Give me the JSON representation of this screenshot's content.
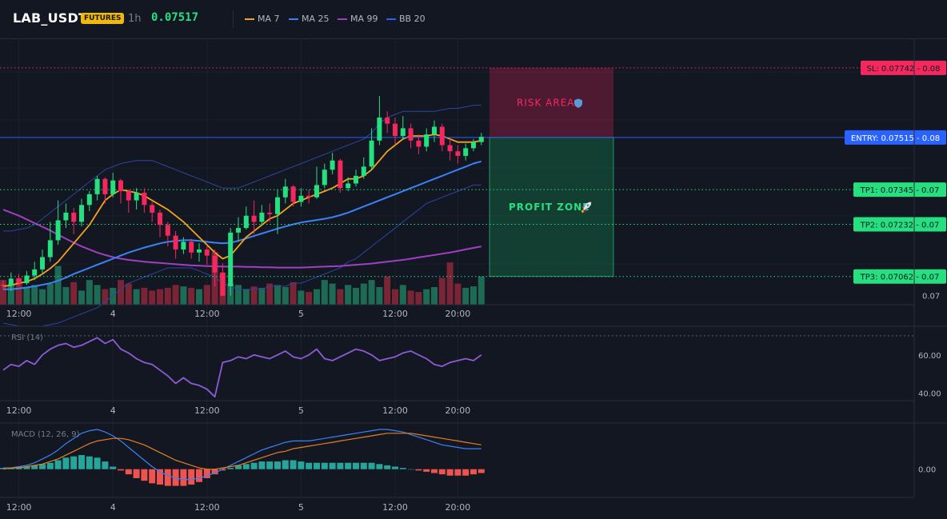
{
  "header": {
    "symbol": "LAB_USDT",
    "badge": "FUTURES",
    "interval": "1h",
    "last_price": "0.07517",
    "legend": [
      {
        "label": "MA 7",
        "color": "#f7a21b"
      },
      {
        "label": "MA 25",
        "color": "#3b82f6"
      },
      {
        "label": "MA 99",
        "color": "#a13fc2"
      },
      {
        "label": "BB 20",
        "color": "#2962ff"
      }
    ]
  },
  "colors": {
    "up": "#26e07f",
    "down": "#f5285e",
    "vol_up": "#1e6b55",
    "vol_down": "#7a2535",
    "ma7": "#f7a21b",
    "ma25": "#3b82f6",
    "ma99": "#a13fc2",
    "bb": "#2d44a0",
    "rsi": "#8e5bd6",
    "macd": "#3b82f6",
    "signal": "#e67e22",
    "hist_up": "#26a69a",
    "hist_down": "#ef5350"
  },
  "time_axis": {
    "labels": [
      {
        "bar": 2,
        "text": "12:00"
      },
      {
        "bar": 14,
        "text": "4"
      },
      {
        "bar": 26,
        "text": "12:00"
      },
      {
        "bar": 38,
        "text": "5"
      },
      {
        "bar": 50,
        "text": "12:00"
      },
      {
        "bar": 58,
        "text": "20:00"
      }
    ]
  },
  "chart_data": [
    {
      "type": "candlestick",
      "ylim": [
        0.0697,
        0.07838
      ],
      "price_tick_labels": [
        {
          "value": 0.07,
          "text": "0.07"
        }
      ],
      "candles": [
        [
          0.07035,
          0.07032,
          0.0705,
          0.0702
        ],
        [
          0.07032,
          0.07055,
          0.07075,
          0.07015
        ],
        [
          0.07055,
          0.0704,
          0.0707,
          0.0703
        ],
        [
          0.0704,
          0.07065,
          0.0708,
          0.07035
        ],
        [
          0.07065,
          0.07085,
          0.0711,
          0.0705
        ],
        [
          0.07085,
          0.07125,
          0.0715,
          0.0707
        ],
        [
          0.07125,
          0.0718,
          0.0724,
          0.0711
        ],
        [
          0.0718,
          0.07245,
          0.0731,
          0.07165
        ],
        [
          0.07245,
          0.0727,
          0.073,
          0.0722
        ],
        [
          0.0727,
          0.0724,
          0.07285,
          0.072
        ],
        [
          0.0724,
          0.07295,
          0.07315,
          0.07225
        ],
        [
          0.07295,
          0.0733,
          0.0734,
          0.07275
        ],
        [
          0.0733,
          0.0738,
          0.0739,
          0.0731
        ],
        [
          0.0738,
          0.0733,
          0.07385,
          0.073
        ],
        [
          0.0733,
          0.07375,
          0.074,
          0.0732
        ],
        [
          0.07375,
          0.0734,
          0.0738,
          0.073
        ],
        [
          0.0734,
          0.0731,
          0.07345,
          0.0727
        ],
        [
          0.0731,
          0.07335,
          0.0735,
          0.0728
        ],
        [
          0.07335,
          0.07295,
          0.0735,
          0.0727
        ],
        [
          0.07295,
          0.0727,
          0.07305,
          0.0724
        ],
        [
          0.0727,
          0.0723,
          0.0728,
          0.0719
        ],
        [
          0.0723,
          0.07195,
          0.0724,
          0.0716
        ],
        [
          0.07195,
          0.0715,
          0.0721,
          0.0712
        ],
        [
          0.0715,
          0.07175,
          0.0719,
          0.07135
        ],
        [
          0.07175,
          0.0714,
          0.07185,
          0.0712
        ],
        [
          0.0714,
          0.0715,
          0.0717,
          0.0711
        ],
        [
          0.0715,
          0.0713,
          0.07165,
          0.071
        ],
        [
          0.0713,
          0.07075,
          0.0715,
          0.0703
        ],
        [
          0.07075,
          0.06999,
          0.07105,
          0.0701
        ],
        [
          0.0703,
          0.07205,
          0.0722,
          0.07
        ],
        [
          0.07205,
          0.0722,
          0.07255,
          0.07175
        ],
        [
          0.0722,
          0.0726,
          0.0729,
          0.07215
        ],
        [
          0.0726,
          0.0724,
          0.0731,
          0.072
        ],
        [
          0.0724,
          0.0727,
          0.07295,
          0.0723
        ],
        [
          0.0727,
          0.07265,
          0.073,
          0.0724
        ],
        [
          0.07265,
          0.0732,
          0.07345,
          0.072
        ],
        [
          0.0732,
          0.07355,
          0.0738,
          0.073
        ],
        [
          0.07355,
          0.07305,
          0.0736,
          0.0729
        ],
        [
          0.07305,
          0.07325,
          0.0735,
          0.0729
        ],
        [
          0.07325,
          0.0732,
          0.07345,
          0.073
        ],
        [
          0.0732,
          0.0736,
          0.0742,
          0.07315
        ],
        [
          0.0736,
          0.0741,
          0.0743,
          0.0735
        ],
        [
          0.0741,
          0.0744,
          0.07465,
          0.07395
        ],
        [
          0.0744,
          0.0735,
          0.07445,
          0.07335
        ],
        [
          0.0735,
          0.07365,
          0.07385,
          0.0734
        ],
        [
          0.07365,
          0.0739,
          0.0741,
          0.07355
        ],
        [
          0.0739,
          0.0742,
          0.0745,
          0.0738
        ],
        [
          0.0742,
          0.07505,
          0.07545,
          0.0741
        ],
        [
          0.07505,
          0.0758,
          0.0765,
          0.0749
        ],
        [
          0.0758,
          0.0756,
          0.076,
          0.0753
        ],
        [
          0.0756,
          0.0752,
          0.0758,
          0.0749
        ],
        [
          0.0752,
          0.07545,
          0.07585,
          0.0751
        ],
        [
          0.07545,
          0.07505,
          0.0756,
          0.0748
        ],
        [
          0.07505,
          0.07485,
          0.07525,
          0.0746
        ],
        [
          0.07485,
          0.07525,
          0.07545,
          0.0747
        ],
        [
          0.07525,
          0.0755,
          0.0757,
          0.075
        ],
        [
          0.0755,
          0.0749,
          0.0756,
          0.0747
        ],
        [
          0.0749,
          0.0747,
          0.0751,
          0.0744
        ],
        [
          0.0747,
          0.07455,
          0.0749,
          0.0743
        ],
        [
          0.07455,
          0.0748,
          0.07495,
          0.0744
        ],
        [
          0.0748,
          0.075,
          0.0751,
          0.0747
        ],
        [
          0.075,
          0.07517,
          0.0753,
          0.0749
        ]
      ],
      "ma7": [
        0.0703,
        0.07033,
        0.0704,
        0.07045,
        0.07055,
        0.0707,
        0.07088,
        0.0711,
        0.0714,
        0.0717,
        0.072,
        0.0723,
        0.0727,
        0.0731,
        0.0733,
        0.07345,
        0.0734,
        0.07335,
        0.07325,
        0.0731,
        0.07295,
        0.0728,
        0.0726,
        0.0724,
        0.07215,
        0.0719,
        0.07165,
        0.0714,
        0.0712,
        0.0713,
        0.0716,
        0.0719,
        0.0721,
        0.0723,
        0.0725,
        0.0726,
        0.0728,
        0.073,
        0.0731,
        0.0732,
        0.0733,
        0.0734,
        0.0735,
        0.07365,
        0.0738,
        0.0738,
        0.0739,
        0.0741,
        0.0744,
        0.0747,
        0.0749,
        0.0751,
        0.0752,
        0.0752,
        0.0752,
        0.07525,
        0.0752,
        0.0751,
        0.075,
        0.075,
        0.075,
        0.07505
      ],
      "ma25": [
        0.0702,
        0.0702,
        0.07023,
        0.07026,
        0.0703,
        0.07035,
        0.0704,
        0.07048,
        0.07058,
        0.0707,
        0.0708,
        0.0709,
        0.071,
        0.0711,
        0.0712,
        0.0713,
        0.0714,
        0.07148,
        0.07156,
        0.07163,
        0.0717,
        0.07175,
        0.07178,
        0.0718,
        0.0718,
        0.07178,
        0.07175,
        0.07172,
        0.0717,
        0.07172,
        0.07178,
        0.07186,
        0.07194,
        0.07202,
        0.0721,
        0.07218,
        0.07225,
        0.07232,
        0.07238,
        0.07242,
        0.07246,
        0.0725,
        0.07255,
        0.07262,
        0.0727,
        0.0728,
        0.0729,
        0.073,
        0.0731,
        0.0732,
        0.0733,
        0.0734,
        0.0735,
        0.0736,
        0.0737,
        0.0738,
        0.0739,
        0.074,
        0.0741,
        0.0742,
        0.0743,
        0.07437
      ],
      "ma99": [
        0.0728,
        0.0727,
        0.0726,
        0.07248,
        0.07236,
        0.07224,
        0.07212,
        0.07198,
        0.07185,
        0.07172,
        0.0716,
        0.0715,
        0.0714,
        0.07132,
        0.07125,
        0.0712,
        0.07116,
        0.07113,
        0.0711,
        0.07108,
        0.07106,
        0.07104,
        0.07102,
        0.071,
        0.07098,
        0.07097,
        0.07096,
        0.07095,
        0.07094,
        0.07094,
        0.07094,
        0.07093,
        0.07093,
        0.07092,
        0.07092,
        0.07091,
        0.07091,
        0.07091,
        0.07091,
        0.07092,
        0.07093,
        0.07094,
        0.07095,
        0.07096,
        0.07098,
        0.071,
        0.07102,
        0.07104,
        0.07107,
        0.0711,
        0.07113,
        0.07116,
        0.0712,
        0.07124,
        0.07128,
        0.07132,
        0.07136,
        0.0714,
        0.07145,
        0.0715,
        0.07155,
        0.0716
      ],
      "bb_upper": [
        0.0721,
        0.0721,
        0.07215,
        0.0722,
        0.0723,
        0.0725,
        0.0727,
        0.0729,
        0.0731,
        0.0733,
        0.0735,
        0.0737,
        0.0739,
        0.0741,
        0.0742,
        0.0743,
        0.07435,
        0.0744,
        0.0744,
        0.0744,
        0.0743,
        0.0742,
        0.0741,
        0.074,
        0.0739,
        0.0738,
        0.0737,
        0.0736,
        0.0735,
        0.0735,
        0.0735,
        0.0736,
        0.0737,
        0.0738,
        0.0739,
        0.074,
        0.0741,
        0.0742,
        0.0743,
        0.0744,
        0.0745,
        0.0746,
        0.0747,
        0.0748,
        0.0749,
        0.075,
        0.0751,
        0.0753,
        0.0756,
        0.0758,
        0.0759,
        0.076,
        0.076,
        0.076,
        0.076,
        0.076,
        0.07605,
        0.0761,
        0.0761,
        0.07615,
        0.0762,
        0.0762
      ],
      "bb_lower": [
        0.0691,
        0.06905,
        0.069,
        0.069,
        0.069,
        0.069,
        0.06905,
        0.0691,
        0.0692,
        0.0693,
        0.0694,
        0.0695,
        0.0696,
        0.0698,
        0.07,
        0.0702,
        0.0704,
        0.0705,
        0.0706,
        0.0707,
        0.0708,
        0.0709,
        0.0709,
        0.0709,
        0.0709,
        0.0708,
        0.0707,
        0.0706,
        0.0704,
        0.0703,
        0.0702,
        0.0702,
        0.0702,
        0.0702,
        0.0703,
        0.0703,
        0.0703,
        0.0704,
        0.0704,
        0.0705,
        0.0706,
        0.0707,
        0.0708,
        0.0709,
        0.0711,
        0.0712,
        0.0714,
        0.0716,
        0.0718,
        0.072,
        0.0722,
        0.0724,
        0.0726,
        0.0728,
        0.073,
        0.0731,
        0.0732,
        0.0733,
        0.0734,
        0.0735,
        0.0736,
        0.0736
      ],
      "volume": [
        35,
        30,
        38,
        25,
        28,
        22,
        30,
        55,
        25,
        32,
        20,
        35,
        28,
        22,
        24,
        35,
        30,
        22,
        24,
        20,
        22,
        24,
        28,
        26,
        24,
        22,
        28,
        75,
        45,
        30,
        28,
        22,
        26,
        24,
        30,
        28,
        25,
        32,
        20,
        18,
        22,
        35,
        30,
        22,
        28,
        24,
        30,
        35,
        25,
        40,
        22,
        28,
        20,
        18,
        22,
        25,
        38,
        60,
        30,
        24,
        26,
        40
      ],
      "vol_max": 75
    },
    {
      "type": "line",
      "title": "RSI (14)",
      "ylim": [
        36,
        75
      ],
      "tick_labels": [
        {
          "value": 60,
          "text": "60.00"
        },
        {
          "value": 40,
          "text": "40.00"
        }
      ],
      "overbought": 70,
      "values": [
        52,
        55,
        54,
        57,
        55,
        60,
        63,
        65,
        66,
        64,
        65,
        67,
        69,
        66,
        68,
        63,
        61,
        58,
        56,
        55,
        52,
        49,
        45,
        48,
        45,
        44,
        42,
        38,
        56,
        57,
        59,
        58,
        60,
        59,
        58,
        60,
        62,
        59,
        58,
        60,
        63,
        58,
        57,
        59,
        61,
        63,
        62,
        60,
        57,
        58,
        59,
        61,
        62,
        60,
        58,
        55,
        54,
        56,
        57,
        58,
        57,
        60
      ]
    },
    {
      "type": "line",
      "title": "MACD (12, 26, 9)",
      "ylim": [
        -0.0022,
        0.0036
      ],
      "tick_labels": [
        {
          "value": 0,
          "text": "0.00"
        }
      ],
      "macd": [
        0.0001,
        0.0001,
        0.0002,
        0.0003,
        0.0005,
        0.0008,
        0.0011,
        0.0015,
        0.002,
        0.0024,
        0.0028,
        0.003,
        0.0031,
        0.0029,
        0.0026,
        0.0022,
        0.0017,
        0.0012,
        0.0007,
        0.0002,
        -0.0002,
        -0.0005,
        -0.0007,
        -0.0008,
        -0.0008,
        -0.0007,
        -0.0005,
        -0.0003,
        0,
        0.0003,
        0.0006,
        0.0009,
        0.0012,
        0.0015,
        0.0017,
        0.0019,
        0.0021,
        0.0022,
        0.0022,
        0.0022,
        0.0023,
        0.0024,
        0.0025,
        0.0026,
        0.0027,
        0.0028,
        0.0029,
        0.003,
        0.0031,
        0.0031,
        0.003,
        0.0029,
        0.0027,
        0.0025,
        0.0023,
        0.0021,
        0.0019,
        0.0018,
        0.0017,
        0.0016,
        0.0016,
        0.0016
      ],
      "signal": [
        0,
        0.0001,
        0.0001,
        0.0002,
        0.0003,
        0.0004,
        0.0006,
        0.0008,
        0.0011,
        0.0014,
        0.0017,
        0.002,
        0.0022,
        0.0023,
        0.0024,
        0.0024,
        0.0023,
        0.0021,
        0.0019,
        0.0016,
        0.0013,
        0.001,
        0.0007,
        0.0005,
        0.0003,
        0.0001,
        0,
        0,
        0.0001,
        0.0002,
        0.0003,
        0.0005,
        0.0007,
        0.0009,
        0.0011,
        0.0013,
        0.0014,
        0.0016,
        0.0017,
        0.0018,
        0.0019,
        0.002,
        0.0021,
        0.0022,
        0.0023,
        0.0024,
        0.0025,
        0.0026,
        0.0027,
        0.0028,
        0.0028,
        0.0028,
        0.0028,
        0.0027,
        0.0026,
        0.0025,
        0.0024,
        0.0023,
        0.0022,
        0.0021,
        0.002,
        0.0019
      ],
      "histogram": [
        0.0001,
        0.0001,
        0.0002,
        0.0002,
        0.0003,
        0.0004,
        0.0005,
        0.0007,
        0.0009,
        0.001,
        0.0011,
        0.001,
        0.0009,
        0.0006,
        0.0002,
        -0.0001,
        -0.0004,
        -0.0007,
        -0.0009,
        -0.0011,
        -0.0012,
        -0.0013,
        -0.0013,
        -0.0013,
        -0.0012,
        -0.001,
        -0.0007,
        -0.0004,
        -0.0001,
        0.0001,
        0.0003,
        0.0004,
        0.0005,
        0.0006,
        0.0006,
        0.0006,
        0.0007,
        0.0007,
        0.0006,
        0.0005,
        0.0005,
        0.0005,
        0.0005,
        0.0005,
        0.0005,
        0.0005,
        0.0005,
        0.0005,
        0.0004,
        0.0003,
        0.0002,
        0.0001,
        0,
        -0.0001,
        -0.0002,
        -0.0003,
        -0.0004,
        -0.0005,
        -0.0005,
        -0.0005,
        -0.0004,
        -0.0003
      ]
    }
  ],
  "trade_levels": [
    {
      "id": "sl",
      "label": "SL: 0.07742 - 0.08",
      "price": 0.07742,
      "color": "#f5285e",
      "text_color": "#131722"
    },
    {
      "id": "entry",
      "label": "ENTRY: 0.07515 - 0.08",
      "price": 0.07515,
      "color": "#2962ff",
      "text_color": "#ffffff"
    },
    {
      "id": "tp1",
      "label": "TP1: 0.07345 - 0.07",
      "price": 0.07345,
      "color": "#26e07f",
      "text_color": "#131722"
    },
    {
      "id": "tp2",
      "label": "TP2: 0.07232 - 0.07",
      "price": 0.07232,
      "color": "#26e07f",
      "text_color": "#131722"
    },
    {
      "id": "tp3",
      "label": "TP3: 0.07062 - 0.07",
      "price": 0.07062,
      "color": "#26e07f",
      "text_color": "#131722"
    }
  ],
  "zones": {
    "risk": {
      "label": "RISK AREA",
      "icon": "shield-icon",
      "top_price": 0.07742,
      "bottom_price": 0.07515
    },
    "profit": {
      "label": "PROFIT ZONE",
      "icon": "rocket-icon",
      "top_price": 0.07515,
      "bottom_price": 0.07062
    }
  }
}
